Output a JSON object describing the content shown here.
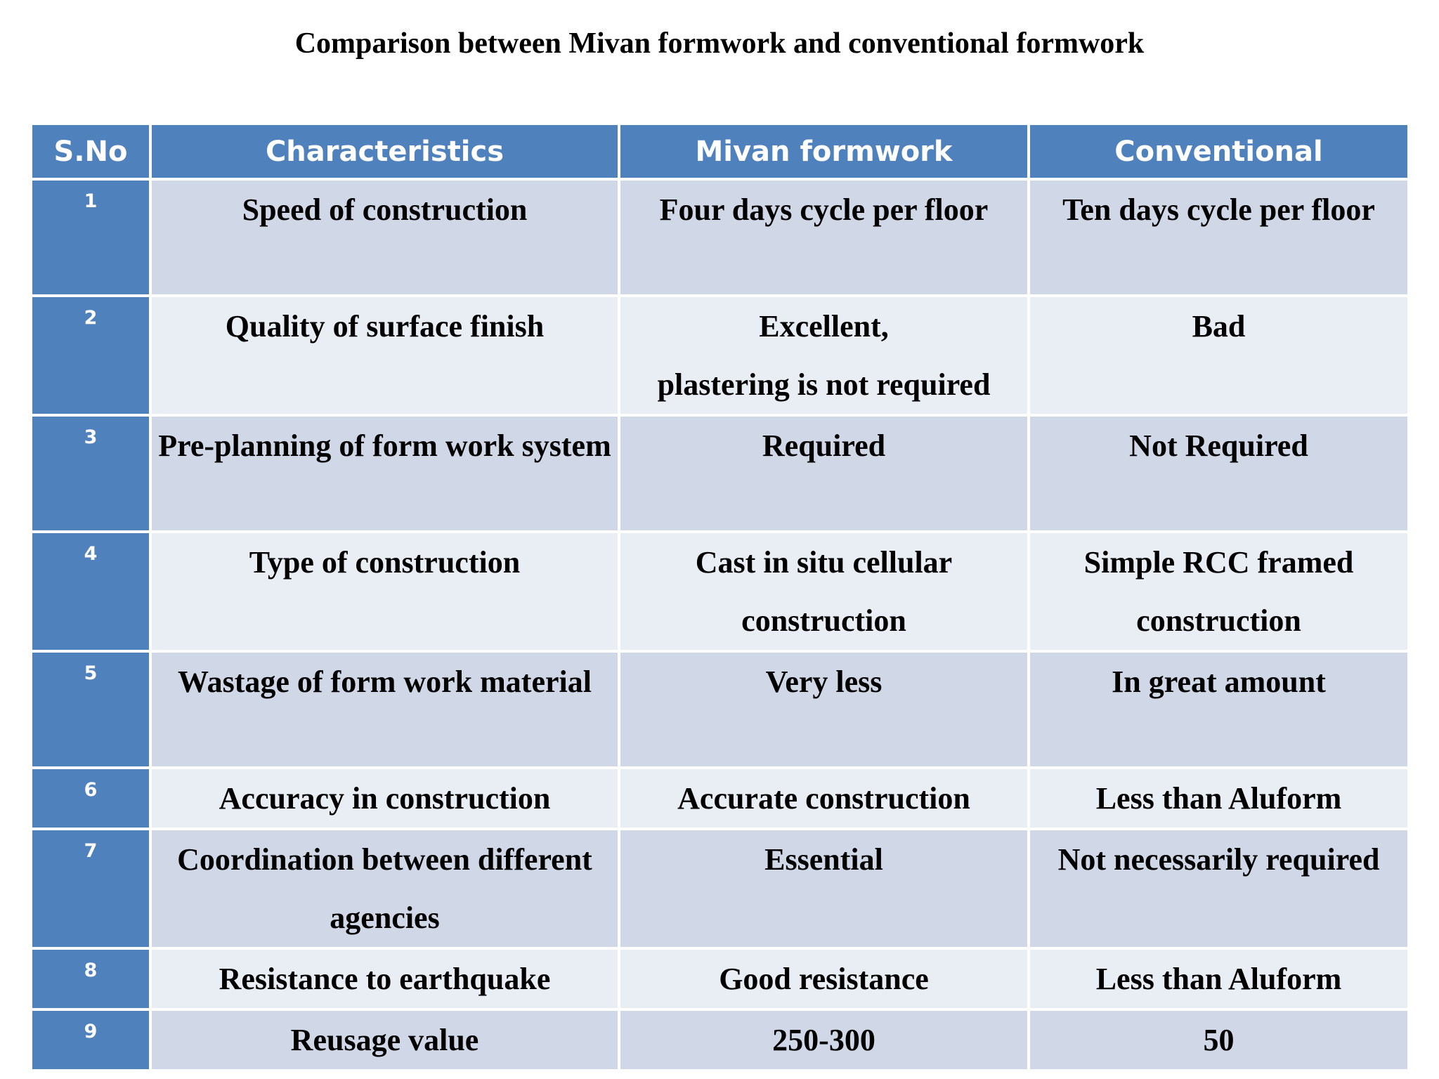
{
  "header": {
    "title": "Comparison between Mivan formwork and conventional formwork"
  },
  "table": {
    "columns": [
      "S.No",
      "Characteristics",
      "Mivan formwork",
      "Conventional"
    ],
    "rows": [
      [
        "1",
        "Speed of construction",
        "Four days cycle per floor",
        "Ten days cycle per floor"
      ],
      [
        "2",
        "Quality of surface finish",
        "Excellent,\nplastering is not required",
        "Bad"
      ],
      [
        "3",
        "Pre-planning of form work system",
        "Required",
        "Not Required"
      ],
      [
        "4",
        "Type of construction",
        "Cast in situ cellular construction",
        "Simple RCC framed construction"
      ],
      [
        "5",
        "Wastage of form work material",
        "Very less",
        "In great amount"
      ],
      [
        "6",
        "Accuracy in construction",
        "Accurate construction",
        "Less than Aluform"
      ],
      [
        "7",
        "Coordination between different agencies",
        "Essential",
        "Not necessarily required"
      ],
      [
        "8",
        "Resistance to earthquake",
        "Good resistance",
        "Less than Aluform"
      ],
      [
        "9",
        "Reusage value",
        "250-300",
        "50"
      ]
    ]
  }
}
